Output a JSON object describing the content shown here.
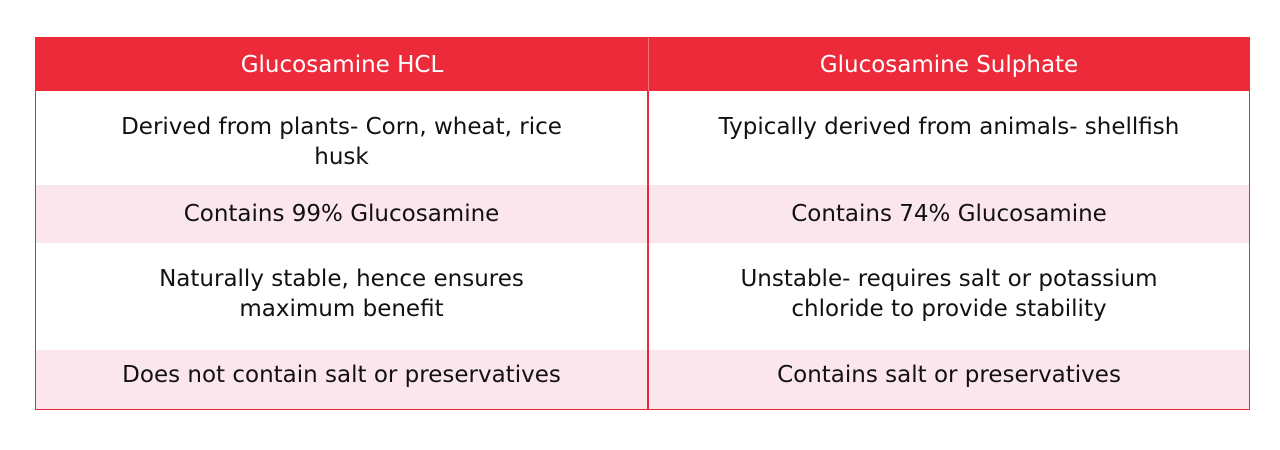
{
  "table": {
    "headers": [
      "Glucosamine HCL",
      "Glucosamine Sulphate"
    ],
    "rows": [
      [
        "Derived from plants- Corn, wheat, rice husk",
        "Typically derived from animals- shellfish"
      ],
      [
        "Contains 99% Glucosamine",
        "Contains 74% Glucosamine"
      ],
      [
        "Naturally stable, hence ensures maximum benefit",
        "Unstable- requires salt or potassium chloride to provide stability"
      ],
      [
        "Does not contain salt or preservatives",
        "Contains salt or preservatives"
      ]
    ],
    "colors": {
      "header_bg": "#ec2a3a",
      "header_text": "#ffffff",
      "stripe_bg": "#fce6ee",
      "border": "#ec2a3a",
      "body_text": "#111111"
    }
  }
}
